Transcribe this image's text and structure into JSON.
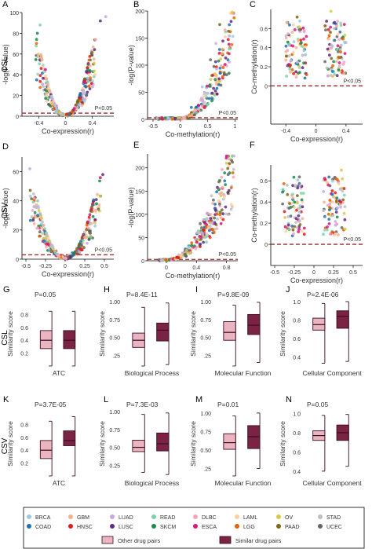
{
  "row_labels": [
    "CSL",
    "CSV",
    "CSL",
    "CSV"
  ],
  "panel_letters": [
    "A",
    "B",
    "C",
    "D",
    "E",
    "F",
    "G",
    "H",
    "I",
    "J",
    "K",
    "L",
    "M",
    "N"
  ],
  "threshold_label": "P<0.05",
  "colors": {
    "threshold": "#a32a2a",
    "other_box": "#eab5c0",
    "similar_box": "#7a2345",
    "box_line": "#3a0d20",
    "axis": "#000000"
  },
  "legend": {
    "cancer_types": [
      {
        "name": "BRCA",
        "color": "#9ecae1"
      },
      {
        "name": "COAD",
        "color": "#2171b5"
      },
      {
        "name": "GBM",
        "color": "#fcae91"
      },
      {
        "name": "HNSC",
        "color": "#e31a1c"
      },
      {
        "name": "LUAD",
        "color": "#c8a8e0"
      },
      {
        "name": "LUSC",
        "color": "#5e2a84"
      },
      {
        "name": "READ",
        "color": "#7fd3a8"
      },
      {
        "name": "SKCM",
        "color": "#1b8a4a"
      },
      {
        "name": "DLBC",
        "color": "#f4a7b9"
      },
      {
        "name": "ESCA",
        "color": "#d6187a"
      },
      {
        "name": "LAML",
        "color": "#fdd0a2"
      },
      {
        "name": "LGG",
        "color": "#e66101"
      },
      {
        "name": "OV",
        "color": "#d9c84a"
      },
      {
        "name": "PAAD",
        "color": "#7a6a1a"
      },
      {
        "name": "STAD",
        "color": "#bfbfbf"
      },
      {
        "name": "UCEC",
        "color": "#666666"
      }
    ],
    "pair_types": [
      {
        "name": "Other drug pairs",
        "color": "#eab5c0"
      },
      {
        "name": "Similar drug pairs",
        "color": "#7a2345"
      }
    ]
  },
  "chart_data": [
    {
      "id": "A",
      "type": "scatter",
      "xlabel": "Co-expression(r)",
      "ylabel": "-log(P-value)",
      "xlim": [
        -0.65,
        0.72
      ],
      "ylim": [
        0,
        100
      ],
      "xticks": [
        -0.4,
        0.0,
        0.4
      ],
      "yticks": [
        0,
        20,
        40,
        60,
        80,
        100
      ],
      "threshold": 3,
      "shape": "volcano",
      "points": [
        {
          "x": 0.6,
          "y": 96
        },
        {
          "x": 0.52,
          "y": 92
        },
        {
          "x": -0.38,
          "y": 88
        },
        {
          "x": -0.42,
          "y": 80
        },
        {
          "x": 0.45,
          "y": 74
        },
        {
          "x": -0.3,
          "y": 45
        },
        {
          "x": 0.35,
          "y": 40
        },
        {
          "x": 0.22,
          "y": 15
        },
        {
          "x": -0.2,
          "y": 12
        }
      ]
    },
    {
      "id": "B",
      "type": "scatter",
      "xlabel": "Co-methylation(r)",
      "ylabel": "-log(P-value)",
      "xlim": [
        -0.6,
        1.05
      ],
      "ylim": [
        0,
        200
      ],
      "xticks": [
        -0.5,
        0.0,
        0.5,
        1.0
      ],
      "yticks": [
        0,
        50,
        100,
        150,
        200
      ],
      "threshold": 3,
      "shape": "right-curve",
      "points": [
        {
          "x": 0.95,
          "y": 198
        },
        {
          "x": 0.72,
          "y": 175
        },
        {
          "x": 0.65,
          "y": 140
        },
        {
          "x": 0.55,
          "y": 110
        },
        {
          "x": 0.4,
          "y": 60
        },
        {
          "x": 0.2,
          "y": 22
        }
      ]
    },
    {
      "id": "C",
      "type": "scatter",
      "xlabel": "Co-expression(r)",
      "ylabel": "Co-methylation(r)",
      "xlim": [
        -0.6,
        0.62
      ],
      "ylim": [
        -0.4,
        0.8
      ],
      "xticks": [
        -0.4,
        0.0,
        0.4
      ],
      "yticks": [
        0.0,
        0.2,
        0.4,
        0.6
      ],
      "threshold": 0.0,
      "shape": "clusters",
      "points": [
        {
          "x": -0.3,
          "y": 0.35
        },
        {
          "x": 0.3,
          "y": 0.3
        },
        {
          "x": 0.2,
          "y": 0.78
        },
        {
          "x": -0.25,
          "y": 0.72
        }
      ]
    },
    {
      "id": "D",
      "type": "scatter",
      "xlabel": "Co-expression(r)",
      "ylabel": "-log(P-value)",
      "xlim": [
        -0.55,
        0.62
      ],
      "ylim": [
        0,
        70
      ],
      "xticks": [
        -0.5,
        -0.25,
        0.0,
        0.25,
        0.5
      ],
      "yticks": [
        0,
        20,
        40,
        60
      ],
      "threshold": 3,
      "shape": "volcano",
      "points": [
        {
          "x": -0.45,
          "y": 62
        },
        {
          "x": 0.48,
          "y": 58
        },
        {
          "x": -0.35,
          "y": 40
        },
        {
          "x": 0.4,
          "y": 38
        },
        {
          "x": 0.25,
          "y": 15
        }
      ]
    },
    {
      "id": "E",
      "type": "scatter",
      "xlabel": "Co-methylation(r)",
      "ylabel": "-log(P-value)",
      "xlim": [
        -0.25,
        0.95
      ],
      "ylim": [
        0,
        230
      ],
      "xticks": [
        0.0,
        0.4,
        0.8
      ],
      "yticks": [
        0,
        50,
        100,
        150,
        200
      ],
      "threshold": 3,
      "shape": "right-curve",
      "points": [
        {
          "x": 0.8,
          "y": 210
        },
        {
          "x": 0.7,
          "y": 170
        },
        {
          "x": 0.6,
          "y": 140
        },
        {
          "x": 0.45,
          "y": 80
        },
        {
          "x": 0.3,
          "y": 30
        }
      ]
    },
    {
      "id": "F",
      "type": "scatter",
      "xlabel": "Co-expression(r)",
      "ylabel": "Co-methylation(r)",
      "xlim": [
        -0.55,
        0.62
      ],
      "ylim": [
        -0.2,
        0.75
      ],
      "xticks": [
        -0.5,
        -0.25,
        0.0,
        0.25,
        0.5
      ],
      "yticks": [
        0.0,
        0.2,
        0.4,
        0.6
      ],
      "threshold": 0.0,
      "shape": "clusters",
      "points": [
        {
          "x": -0.25,
          "y": 0.35
        },
        {
          "x": 0.2,
          "y": 0.35
        },
        {
          "x": 0.35,
          "y": 0.7
        }
      ]
    },
    {
      "id": "G",
      "type": "box",
      "title": "P=0.05",
      "xlabel": "ATC",
      "ylabel": "Similarity score",
      "ylim": [
        0.0,
        1.0
      ],
      "yticks": [
        0.2,
        0.4,
        0.6,
        0.8
      ],
      "ytick_labels": [
        "0.2",
        "0.4",
        "0.6",
        "0.8"
      ],
      "boxes": [
        {
          "group": "Other drug pairs",
          "min": 0.0,
          "q1": 0.27,
          "median": 0.4,
          "q3": 0.55,
          "max": 0.85
        },
        {
          "group": "Similar drug pairs",
          "min": 0.0,
          "q1": 0.27,
          "median": 0.4,
          "q3": 0.55,
          "max": 0.85
        }
      ]
    },
    {
      "id": "H",
      "type": "box",
      "title": "P=8.4E-11",
      "xlabel": "Biological Process",
      "ylabel": "Similarity score",
      "ylim": [
        0.1,
        1.0
      ],
      "yticks": [
        0.25,
        0.5,
        0.75,
        1.0
      ],
      "ytick_labels": [
        ".25",
        "0.50",
        "0.75",
        "1.00"
      ],
      "boxes": [
        {
          "group": "Other drug pairs",
          "min": 0.1,
          "q1": 0.36,
          "median": 0.46,
          "q3": 0.56,
          "max": 0.92
        },
        {
          "group": "Similar drug pairs",
          "min": 0.12,
          "q1": 0.45,
          "median": 0.6,
          "q3": 0.7,
          "max": 0.98
        }
      ]
    },
    {
      "id": "I",
      "type": "box",
      "title": "P=9.8E-09",
      "xlabel": "Molecular Function",
      "ylabel": "Similarity score",
      "ylim": [
        0.1,
        1.0
      ],
      "yticks": [
        0.25,
        0.5,
        0.75,
        1.0
      ],
      "ytick_labels": [
        ".25",
        "0.50",
        "0.75",
        "1.00"
      ],
      "boxes": [
        {
          "group": "Other drug pairs",
          "min": 0.1,
          "q1": 0.46,
          "median": 0.57,
          "q3": 0.72,
          "max": 0.95
        },
        {
          "group": "Similar drug pairs",
          "min": 0.15,
          "q1": 0.54,
          "median": 0.67,
          "q3": 0.82,
          "max": 0.99
        }
      ]
    },
    {
      "id": "J",
      "type": "box",
      "title": "P=2.4E-06",
      "xlabel": "Cellular Component",
      "ylabel": "Similarity score",
      "ylim": [
        0.3,
        1.0
      ],
      "yticks": [
        0.4,
        0.6,
        0.8,
        1.0
      ],
      "ytick_labels": [
        "0.4",
        "0.6",
        "0.8",
        "1.0"
      ],
      "boxes": [
        {
          "group": "Other drug pairs",
          "min": 0.33,
          "q1": 0.69,
          "median": 0.75,
          "q3": 0.82,
          "max": 0.98
        },
        {
          "group": "Similar drug pairs",
          "min": 0.35,
          "q1": 0.71,
          "median": 0.84,
          "q3": 0.9,
          "max": 1.0
        }
      ]
    },
    {
      "id": "K",
      "type": "box",
      "title": "P=3.7E-05",
      "xlabel": "ATC",
      "ylabel": "Similarity score",
      "ylim": [
        0.0,
        1.0
      ],
      "yticks": [
        0.2,
        0.4,
        0.6,
        0.8
      ],
      "ytick_labels": [
        "0.2",
        "0.4",
        "0.6",
        "0.8"
      ],
      "boxes": [
        {
          "group": "Other drug pairs",
          "min": 0.0,
          "q1": 0.27,
          "median": 0.4,
          "q3": 0.55,
          "max": 0.85
        },
        {
          "group": "Similar drug pairs",
          "min": 0.0,
          "q1": 0.47,
          "median": 0.55,
          "q3": 0.7,
          "max": 0.92
        }
      ]
    },
    {
      "id": "L",
      "type": "box",
      "title": "P=7.3E-03",
      "xlabel": "Biological Process",
      "ylabel": "Similarity score",
      "ylim": [
        0.1,
        1.0
      ],
      "yticks": [
        0.25,
        0.5,
        0.75,
        1.0
      ],
      "ytick_labels": [
        "0.25",
        "0.50",
        "0.75",
        "1.00"
      ],
      "boxes": [
        {
          "group": "Other drug pairs",
          "min": 0.15,
          "q1": 0.44,
          "median": 0.5,
          "q3": 0.6,
          "max": 0.96
        },
        {
          "group": "Similar drug pairs",
          "min": 0.12,
          "q1": 0.45,
          "median": 0.55,
          "q3": 0.7,
          "max": 0.98
        }
      ]
    },
    {
      "id": "M",
      "type": "box",
      "title": "P=0.01",
      "xlabel": "Molecular Function",
      "ylabel": "Similarity score",
      "ylim": [
        0.15,
        1.02
      ],
      "yticks": [
        0.25,
        0.5,
        0.75,
        1.0
      ],
      "ytick_labels": [
        ".25",
        "0.50",
        "0.75",
        "1.00"
      ],
      "boxes": [
        {
          "group": "Other drug pairs",
          "min": 0.15,
          "q1": 0.51,
          "median": 0.6,
          "q3": 0.72,
          "max": 0.96
        },
        {
          "group": "Similar drug pairs",
          "min": 0.25,
          "q1": 0.52,
          "median": 0.68,
          "q3": 0.83,
          "max": 1.0
        }
      ]
    },
    {
      "id": "N",
      "type": "box",
      "title": "P=0.05",
      "xlabel": "Cellular Component",
      "ylabel": "Similarity score",
      "ylim": [
        0.35,
        1.02
      ],
      "yticks": [
        0.4,
        0.6,
        0.8,
        1.0
      ],
      "ytick_labels": [
        "0.4",
        "0.6",
        "0.8",
        "1.0"
      ],
      "boxes": [
        {
          "group": "Other drug pairs",
          "min": 0.4,
          "q1": 0.72,
          "median": 0.77,
          "q3": 0.82,
          "max": 0.98
        },
        {
          "group": "Similar drug pairs",
          "min": 0.45,
          "q1": 0.72,
          "median": 0.8,
          "q3": 0.88,
          "max": 0.99
        }
      ]
    }
  ]
}
